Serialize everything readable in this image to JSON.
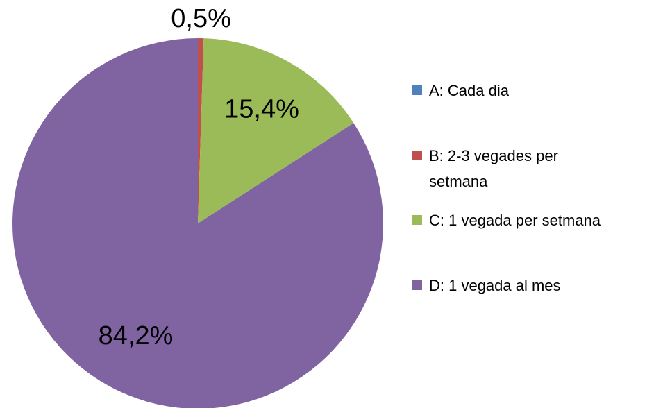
{
  "chart_data": {
    "type": "pie",
    "categories": [
      "A: Cada dia",
      "B: 2-3 vegades per setmana",
      "C: 1 vegada per setmana",
      "D: 1 vegada al mes"
    ],
    "values": [
      0,
      0.5,
      15.4,
      84.2
    ],
    "value_labels": [
      null,
      "0,5%",
      "15,4%",
      "84,2%"
    ],
    "colors": [
      "#4f81bd",
      "#c0504d",
      "#9bbb59",
      "#8064a2"
    ],
    "legend": "right"
  }
}
